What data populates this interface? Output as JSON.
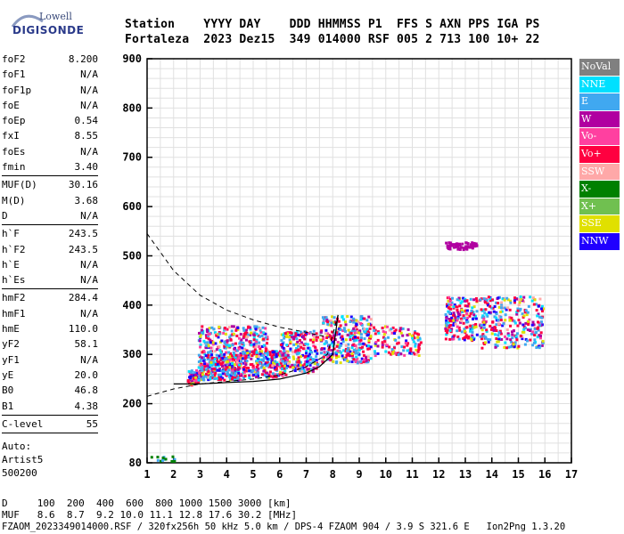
{
  "logo": {
    "top": "Lowell",
    "bottom": "DIGISONDE"
  },
  "header": {
    "line1": "Station    YYYY DAY    DDD HHMMSS P1  FFS S AXN PPS IGA PS",
    "line2": "Fortaleza  2023 Dez15  349 014000 RSF 005 2 713 100 10+ 22"
  },
  "params": {
    "g1": [
      [
        "foF2",
        "8.200"
      ],
      [
        "foF1",
        "N/A"
      ],
      [
        "foF1p",
        "N/A"
      ],
      [
        "foE",
        "N/A"
      ],
      [
        "foEp",
        "0.54"
      ],
      [
        "fxI",
        "8.55"
      ],
      [
        "foEs",
        "N/A"
      ],
      [
        "fmin",
        "3.40"
      ]
    ],
    "g2": [
      [
        "MUF(D)",
        "30.16"
      ],
      [
        "M(D)",
        "3.68"
      ],
      [
        "D",
        "N/A"
      ]
    ],
    "g3": [
      [
        "h`F",
        "243.5"
      ],
      [
        "h`F2",
        "243.5"
      ],
      [
        "h`E",
        "N/A"
      ],
      [
        "h`Es",
        "N/A"
      ]
    ],
    "g4": [
      [
        "hmF2",
        "284.4"
      ],
      [
        "hmF1",
        "N/A"
      ],
      [
        "hmE",
        "110.0"
      ],
      [
        "yF2",
        "58.1"
      ],
      [
        "yF1",
        "N/A"
      ],
      [
        "yE",
        "20.0"
      ],
      [
        "B0",
        "46.8"
      ],
      [
        "B1",
        "4.38"
      ]
    ],
    "g5": [
      [
        "C-level",
        "55"
      ]
    ],
    "auto": [
      "Auto:",
      "Artist5",
      "500200"
    ]
  },
  "legend": [
    {
      "label": "NoVal",
      "color": "#808080"
    },
    {
      "label": "NNE",
      "color": "#00e0ff"
    },
    {
      "label": "E",
      "color": "#40a8f0"
    },
    {
      "label": "W",
      "color": "#b000a0"
    },
    {
      "label": "Vo-",
      "color": "#ff40a0"
    },
    {
      "label": "Vo+",
      "color": "#ff0040"
    },
    {
      "label": "SSW",
      "color": "#ffa8a8"
    },
    {
      "label": "X-",
      "color": "#008000"
    },
    {
      "label": "X+",
      "color": "#70c050"
    },
    {
      "label": "SSE",
      "color": "#e0e000"
    },
    {
      "label": "NNW",
      "color": "#2000ff"
    }
  ],
  "footer": {
    "line1": "D     100  200  400  600  800 1000 1500 3000 [km]",
    "line2": "MUF   8.6  8.7  9.2 10.0 11.1 12.8 17.6 30.2 [MHz]",
    "line3": "FZAOM_2023349014000.RSF / 320fx256h 50 kHz 5.0 km / DPS-4 FZAOM 904 / 3.9 S 321.6 E   Ion2Png 1.3.20"
  },
  "chart_data": {
    "type": "scatter",
    "title": "",
    "xlabel": "",
    "ylabel": "",
    "xlim": [
      1,
      17
    ],
    "ylim": [
      80,
      900
    ],
    "xticks": [
      1,
      2,
      3,
      4,
      5,
      6,
      7,
      8,
      9,
      10,
      11,
      12,
      13,
      14,
      15,
      16,
      17
    ],
    "yticks": [
      80,
      200,
      300,
      400,
      500,
      600,
      700,
      800,
      900
    ],
    "grid": true,
    "echo_clusters": [
      {
        "x": [
          2.5,
          2.9
        ],
        "y": [
          240,
          270
        ],
        "n": 60
      },
      {
        "x": [
          2.9,
          4.5
        ],
        "y": [
          250,
          300
        ],
        "n": 320
      },
      {
        "x": [
          2.9,
          5.5
        ],
        "y": [
          300,
          360
        ],
        "n": 260
      },
      {
        "x": [
          4.5,
          6.2
        ],
        "y": [
          255,
          310
        ],
        "n": 260
      },
      {
        "x": [
          6.0,
          7.4
        ],
        "y": [
          265,
          350
        ],
        "n": 220
      },
      {
        "x": [
          7.5,
          9.4
        ],
        "y": [
          285,
          380
        ],
        "n": 320
      },
      {
        "x": [
          9.5,
          11.3
        ],
        "y": [
          300,
          360
        ],
        "n": 120
      },
      {
        "x": [
          12.2,
          13.4
        ],
        "y": [
          330,
          420
        ],
        "n": 180
      },
      {
        "x": [
          13.5,
          15.9
        ],
        "y": [
          315,
          420
        ],
        "n": 300
      },
      {
        "x": [
          12.2,
          13.4
        ],
        "y": [
          515,
          530
        ],
        "n": 60
      },
      {
        "x": [
          1.1,
          2.1
        ],
        "y": [
          85,
          95
        ],
        "n": 14
      }
    ],
    "curves": {
      "virtual_height": [
        [
          2.0,
          240
        ],
        [
          3.0,
          240
        ],
        [
          4.0,
          243
        ],
        [
          5.0,
          245
        ],
        [
          6.0,
          250
        ],
        [
          7.0,
          262
        ],
        [
          7.5,
          275
        ],
        [
          8.0,
          300
        ],
        [
          8.2,
          380
        ]
      ],
      "upper_dashed": [
        [
          1.0,
          545
        ],
        [
          2.0,
          470
        ],
        [
          3.0,
          420
        ],
        [
          4.0,
          390
        ],
        [
          5.0,
          370
        ],
        [
          6.0,
          355
        ],
        [
          7.0,
          345
        ],
        [
          7.8,
          335
        ]
      ],
      "lower_dashed": [
        [
          1.0,
          215
        ],
        [
          2.0,
          230
        ],
        [
          3.0,
          240
        ],
        [
          4.0,
          245
        ],
        [
          5.0,
          250
        ],
        [
          6.0,
          258
        ],
        [
          7.0,
          275
        ],
        [
          7.8,
          300
        ],
        [
          8.2,
          380
        ]
      ]
    }
  }
}
